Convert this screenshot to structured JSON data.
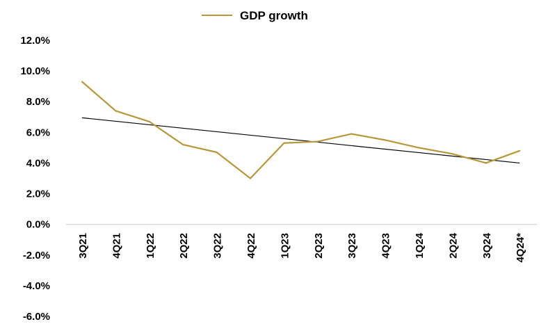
{
  "chart_data": {
    "type": "line",
    "title": "",
    "xlabel": "",
    "ylabel": "",
    "legend": {
      "position": "top-center",
      "entries": [
        "GDP growth"
      ]
    },
    "grid": false,
    "categories": [
      "3Q21",
      "4Q21",
      "1Q22",
      "2Q22",
      "3Q22",
      "4Q22",
      "1Q23",
      "2Q23",
      "3Q23",
      "4Q23",
      "1Q24",
      "2Q24",
      "3Q24",
      "4Q24*"
    ],
    "series": [
      {
        "name": "GDP growth",
        "color": "#B8963A",
        "values": [
          9.3,
          7.4,
          6.7,
          5.2,
          4.7,
          3.0,
          5.3,
          5.4,
          5.9,
          5.5,
          5.0,
          4.6,
          4.0,
          4.8
        ]
      }
    ],
    "trendline": {
      "color": "#000000",
      "start": 6.95,
      "end": 4.0
    },
    "ylim": [
      -6.0,
      12.0
    ],
    "yticks": [
      12.0,
      10.0,
      8.0,
      6.0,
      4.0,
      2.0,
      0.0,
      -2.0,
      -4.0,
      -6.0
    ],
    "ytick_labels": [
      "12.0%",
      "10.0%",
      "8.0%",
      "6.0%",
      "4.0%",
      "2.0%",
      "0.0%",
      "-2.0%",
      "-4.0%",
      "-6.0%"
    ]
  }
}
